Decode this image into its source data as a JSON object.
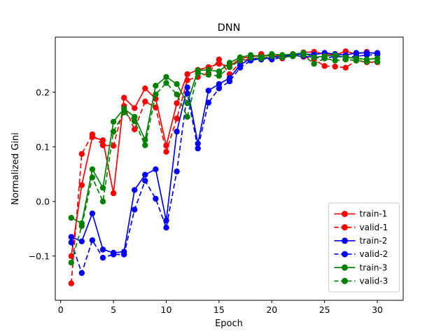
{
  "figure": {
    "background": "#ffffff",
    "border_color": "#000000"
  },
  "chart_data": {
    "type": "line",
    "title": "DNN",
    "xlabel": "Epoch",
    "ylabel": "Normalized Gini",
    "grid": false,
    "legend_position": "lower right",
    "x_ticks": [
      0,
      5,
      10,
      15,
      20,
      25,
      30
    ],
    "y_ticks": [
      -0.1,
      0.0,
      0.1,
      0.2
    ],
    "xlim": [
      -0.51,
      32.45
    ],
    "ylim": [
      -0.181,
      0.301
    ],
    "x": [
      1,
      2,
      3,
      4,
      5,
      6,
      7,
      8,
      9,
      10,
      11,
      12,
      13,
      14,
      15,
      16,
      17,
      18,
      19,
      20,
      21,
      22,
      23,
      24,
      25,
      26,
      27,
      28,
      29,
      30
    ],
    "series": [
      {
        "name": "train-1",
        "color": "#ff0000",
        "style": "solid",
        "marker": "circle",
        "values": [
          -0.1,
          0.03,
          0.118,
          0.112,
          0.015,
          0.19,
          0.171,
          0.207,
          0.188,
          0.102,
          0.18,
          0.233,
          0.241,
          0.246,
          0.252,
          0.247,
          0.262,
          0.265,
          0.268,
          0.266,
          0.268,
          0.266,
          0.273,
          0.274,
          0.27,
          0.268,
          0.275,
          0.27,
          0.274,
          0.27
        ]
      },
      {
        "name": "valid-1",
        "color": "#ff0000",
        "style": "dashed",
        "marker": "circle",
        "values": [
          -0.15,
          0.087,
          0.123,
          0.103,
          0.102,
          0.175,
          0.132,
          0.183,
          0.172,
          0.091,
          0.152,
          0.222,
          0.228,
          0.235,
          0.26,
          0.233,
          0.255,
          0.263,
          0.27,
          0.266,
          0.262,
          0.268,
          0.265,
          0.26,
          0.248,
          0.247,
          0.245,
          0.258,
          0.255,
          0.255
        ]
      },
      {
        "name": "train-2",
        "color": "#0000ff",
        "style": "solid",
        "marker": "circle",
        "values": [
          -0.065,
          -0.073,
          -0.022,
          -0.088,
          -0.094,
          -0.092,
          0.021,
          0.049,
          0.059,
          -0.035,
          0.128,
          0.209,
          0.106,
          0.203,
          0.215,
          0.226,
          0.25,
          0.262,
          0.26,
          0.264,
          0.266,
          0.268,
          0.27,
          0.269,
          0.272,
          0.27,
          0.268,
          0.272,
          0.272,
          0.272
        ]
      },
      {
        "name": "valid-2",
        "color": "#0000ff",
        "style": "dashed",
        "marker": "circle",
        "values": [
          -0.075,
          -0.131,
          -0.071,
          -0.103,
          -0.097,
          -0.097,
          -0.015,
          0.038,
          0.005,
          -0.048,
          0.055,
          0.198,
          0.097,
          0.181,
          0.207,
          0.22,
          0.245,
          0.258,
          0.262,
          0.26,
          0.264,
          0.266,
          0.266,
          0.264,
          0.262,
          0.266,
          0.264,
          0.266,
          0.268,
          0.269
        ]
      },
      {
        "name": "train-3",
        "color": "#008000",
        "style": "solid",
        "marker": "circle",
        "values": [
          -0.03,
          -0.04,
          0.059,
          0.025,
          0.146,
          0.17,
          0.155,
          0.113,
          0.212,
          0.228,
          0.215,
          0.18,
          0.24,
          0.241,
          0.238,
          0.254,
          0.264,
          0.268,
          0.265,
          0.27,
          0.268,
          0.27,
          0.272,
          0.264,
          0.266,
          0.268,
          0.264,
          0.262,
          0.26,
          0.262
        ]
      },
      {
        "name": "valid-3",
        "color": "#008000",
        "style": "dashed",
        "marker": "circle",
        "values": [
          -0.112,
          -0.045,
          0.044,
          0.0,
          0.128,
          0.163,
          0.147,
          0.103,
          0.196,
          0.217,
          0.196,
          0.155,
          0.235,
          0.232,
          0.23,
          0.246,
          0.258,
          0.263,
          0.262,
          0.266,
          0.264,
          0.266,
          0.268,
          0.252,
          0.262,
          0.258,
          0.26,
          0.258,
          0.256,
          0.256
        ]
      }
    ]
  },
  "legend": {
    "items": [
      "train-1",
      "valid-1",
      "train-2",
      "valid-2",
      "train-3",
      "valid-3"
    ],
    "border_color": "#cccccc",
    "background": "#ffffff"
  }
}
